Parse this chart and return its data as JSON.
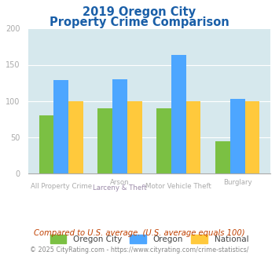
{
  "title_line1": "2019 Oregon City",
  "title_line2": "Property Crime Comparison",
  "cat_labels_top": [
    "All Property Crime",
    "Arson",
    "Motor Vehicle Theft",
    "Burglary"
  ],
  "cat_labels_bottom": [
    "",
    "Larceny & Theft",
    "",
    ""
  ],
  "oregon_city": [
    80,
    90,
    90,
    44
  ],
  "oregon": [
    129,
    130,
    163,
    103
  ],
  "national": [
    100,
    100,
    100,
    100
  ],
  "colors": {
    "oregon_city": "#7BC043",
    "oregon": "#4DA6FF",
    "national": "#FFC93C"
  },
  "ylim": [
    0,
    200
  ],
  "yticks": [
    0,
    50,
    100,
    150,
    200
  ],
  "legend_labels": [
    "Oregon City",
    "Oregon",
    "National"
  ],
  "footnote1": "Compared to U.S. average. (U.S. average equals 100)",
  "footnote2": "© 2025 CityRating.com - https://www.cityrating.com/crime-statistics/",
  "title_color": "#1a5fa8",
  "footnote1_color": "#c04000",
  "footnote2_color": "#888888",
  "fig_bg_color": "#ffffff",
  "plot_bg": "#d6e8ed",
  "tick_label_color": "#aaaaaa",
  "cat_label_top_color": "#aaaaaa",
  "cat_label_bottom_color": "#9b89a8"
}
